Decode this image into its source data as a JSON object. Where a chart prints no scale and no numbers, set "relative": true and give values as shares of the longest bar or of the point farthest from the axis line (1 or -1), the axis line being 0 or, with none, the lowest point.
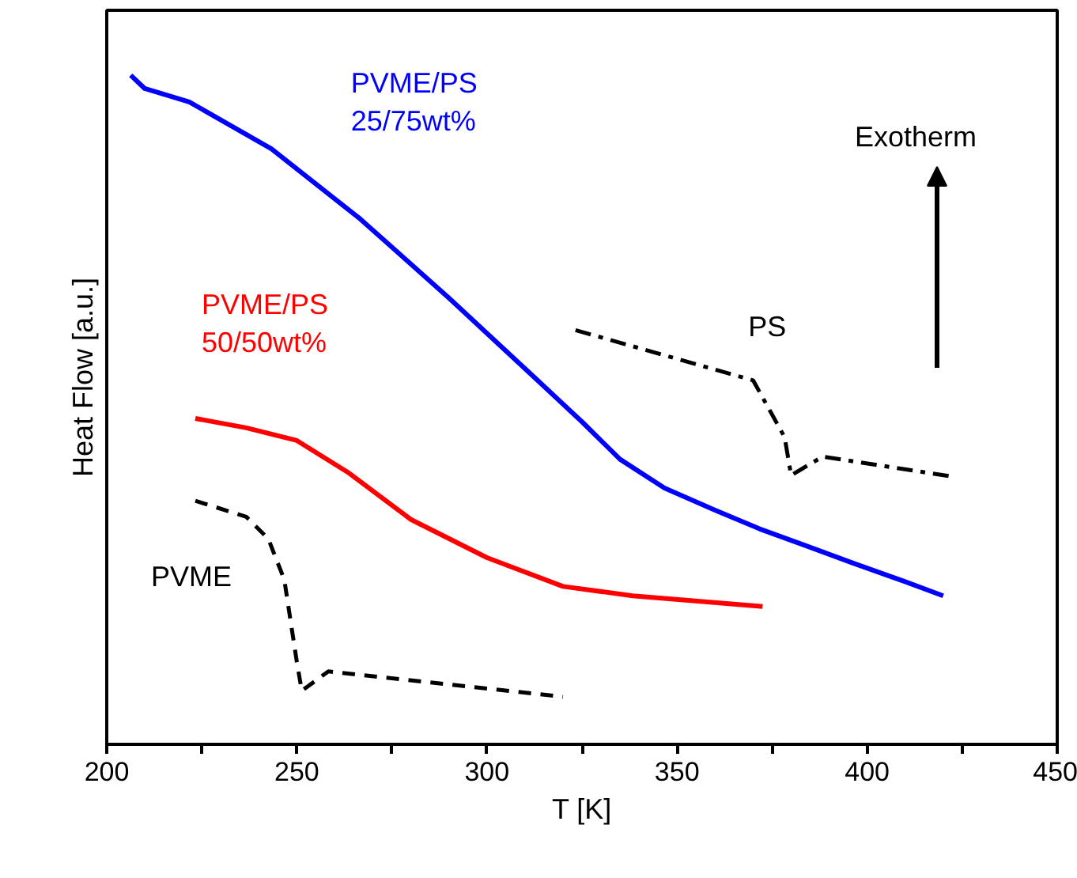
{
  "chart_data": {
    "type": "line",
    "relative": true,
    "xlabel": "T [K]",
    "ylabel": "Heat Flow [a.u.]",
    "xlim": [
      200,
      450
    ],
    "xticks": [
      200,
      {
        "value": 225,
        "label": null
      },
      250,
      {
        "value": 275,
        "label": null
      },
      300,
      {
        "value": 325,
        "label": null
      },
      350,
      {
        "value": 375,
        "label": null
      },
      400,
      {
        "value": 425,
        "label": null
      },
      450
    ],
    "grid": false,
    "series": [
      {
        "name": "PVME/PS\n25/75wt%",
        "color": "#0000ff",
        "line_style": "solid",
        "x": [
          206.3,
          210,
          221.7,
          243.3,
          266.7,
          290,
          313.3,
          325,
          335,
          346.7,
          360,
          371.7,
          383.3,
          396.7,
          410,
          420
        ],
        "values": [
          1.0,
          0.98,
          0.96,
          0.89,
          0.785,
          0.667,
          0.544,
          0.482,
          0.426,
          0.383,
          0.35,
          0.322,
          0.298,
          0.27,
          0.243,
          0.222
        ]
      },
      {
        "name": "PVME/PS\n50/50wt%",
        "color": "#ff0000",
        "line_style": "solid",
        "x": [
          223.3,
          236.7,
          250,
          263.3,
          280,
          300,
          320,
          338.3,
          372.5
        ],
        "values": [
          0.487,
          0.473,
          0.454,
          0.407,
          0.336,
          0.279,
          0.236,
          0.222,
          0.206
        ]
      },
      {
        "name": "PVME",
        "color": "#000000",
        "line_style": "dashed",
        "x": [
          223.3,
          236.7,
          242.5,
          246.7,
          250,
          251.3,
          258.3,
          320
        ],
        "values": [
          0.364,
          0.34,
          0.307,
          0.246,
          0.123,
          0.08,
          0.109,
          0.071
        ]
      },
      {
        "name": "PS",
        "color": "#000000",
        "line_style": "dashdot",
        "x": [
          323.3,
          370,
          378.3,
          380,
          388.3,
          422.5
        ],
        "values": [
          0.619,
          0.544,
          0.459,
          0.402,
          0.43,
          0.4
        ]
      }
    ],
    "annotations": [
      "Exotherm"
    ]
  }
}
